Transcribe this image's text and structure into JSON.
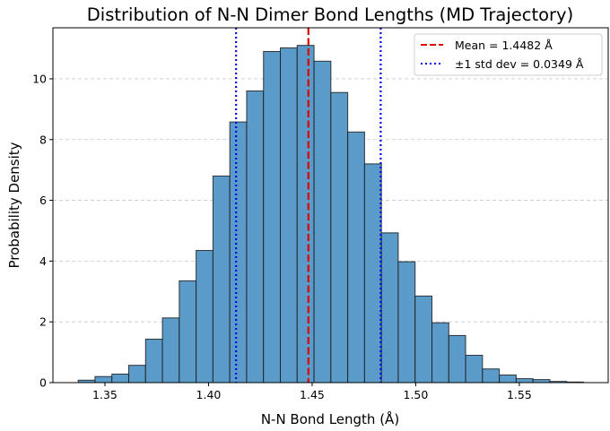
{
  "chart_data": {
    "type": "bar",
    "title": "Distribution of N-N Dimer Bond Lengths (MD Trajectory)",
    "xlabel": "N-N Bond Length (Å)",
    "ylabel": "Probability Density",
    "xlim": [
      1.3249,
      1.5929
    ],
    "ylim": [
      0,
      11.68
    ],
    "grid": "y dashed",
    "legend_placement": "upper right",
    "bin_start": 1.3371,
    "bin_width": 0.00813,
    "values": [
      0.08,
      0.2,
      0.28,
      0.57,
      1.43,
      2.13,
      3.35,
      4.35,
      6.8,
      8.58,
      9.6,
      10.9,
      11.02,
      11.1,
      10.58,
      9.55,
      8.25,
      7.2,
      4.93,
      3.98,
      2.85,
      1.97,
      1.55,
      0.9,
      0.45,
      0.25,
      0.13,
      0.1,
      0.04,
      0.02
    ],
    "bar_color": "#5b9bc9",
    "xticks": [
      1.35,
      1.4,
      1.45,
      1.5,
      1.55
    ],
    "xtick_labels": [
      "1.35",
      "1.40",
      "1.45",
      "1.50",
      "1.55"
    ],
    "yticks": [
      0,
      2,
      4,
      6,
      8,
      10
    ],
    "ytick_labels": [
      "0",
      "2",
      "4",
      "6",
      "8",
      "10"
    ],
    "lines": [
      {
        "label": "Mean = 1.4482 Å",
        "x": 1.4482,
        "color": "#e00000",
        "style": "dashed"
      },
      {
        "label": "±1 std dev = 0.0349 Å",
        "x": 1.4133,
        "color": "#0000ee",
        "style": "dotted"
      },
      {
        "x": 1.4831,
        "color": "#0000ee",
        "style": "dotted"
      }
    ]
  }
}
